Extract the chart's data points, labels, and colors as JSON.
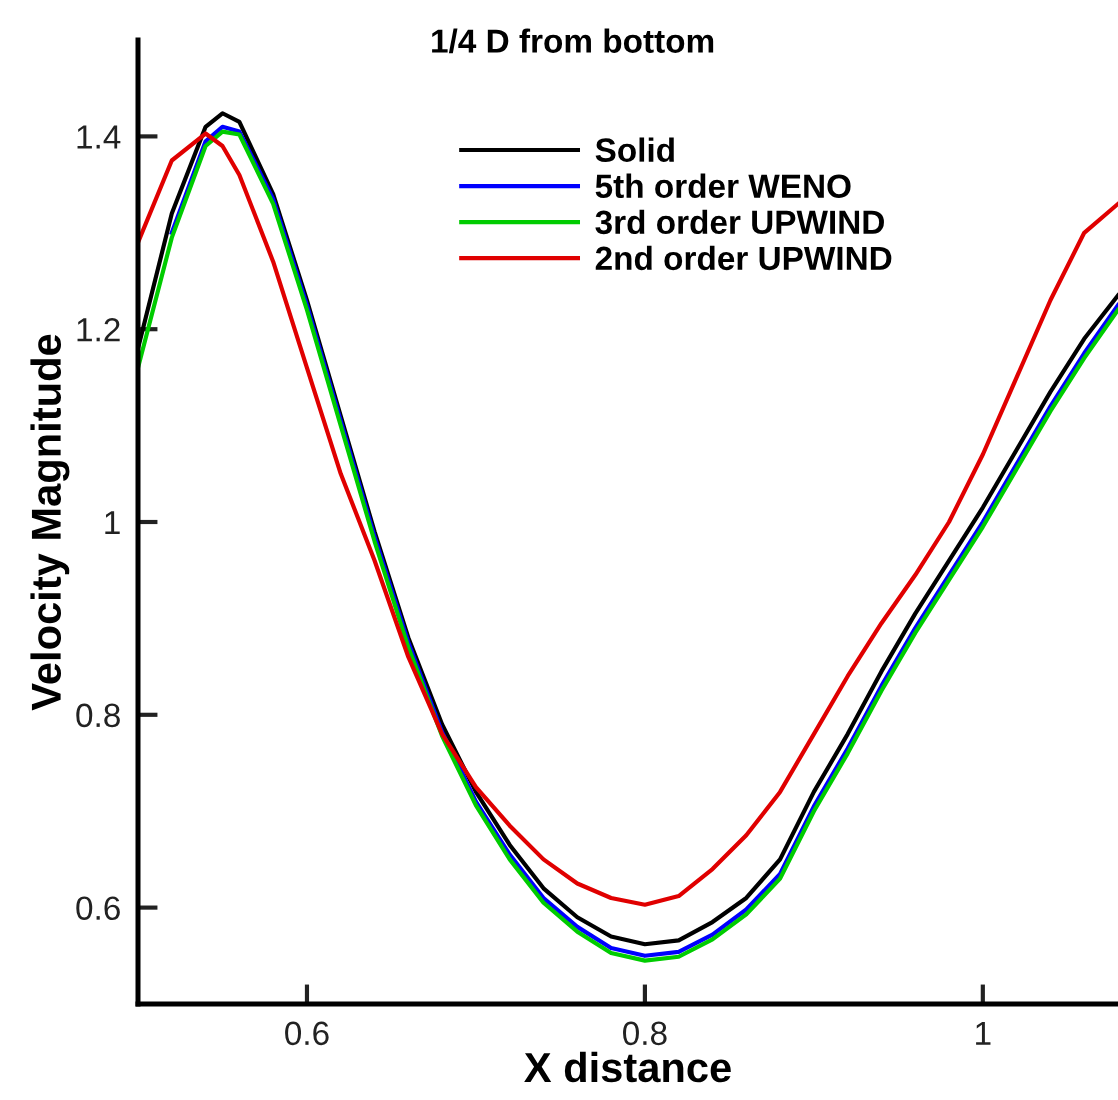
{
  "chart_data": {
    "type": "line",
    "title": "1/4 D from bottom",
    "xlabel": "X distance",
    "ylabel": "Velocity Magnitude",
    "x": [
      0.5,
      0.52,
      0.54,
      0.55,
      0.56,
      0.58,
      0.6,
      0.62,
      0.64,
      0.66,
      0.68,
      0.7,
      0.72,
      0.74,
      0.76,
      0.78,
      0.8,
      0.82,
      0.84,
      0.86,
      0.88,
      0.9,
      0.92,
      0.94,
      0.96,
      0.98,
      1.0,
      1.02,
      1.04,
      1.06,
      1.08
    ],
    "series": [
      {
        "name": "Solid",
        "color": "#000000",
        "values": [
          1.18,
          1.32,
          1.41,
          1.424,
          1.415,
          1.34,
          1.23,
          1.11,
          0.99,
          0.88,
          0.79,
          0.72,
          0.665,
          0.62,
          0.59,
          0.57,
          0.562,
          0.566,
          0.585,
          0.61,
          0.65,
          0.72,
          0.78,
          0.845,
          0.905,
          0.96,
          1.015,
          1.075,
          1.135,
          1.19,
          1.235
        ]
      },
      {
        "name": "5th order WENO",
        "color": "#0000ff",
        "values": [
          null,
          1.3,
          1.395,
          1.41,
          1.405,
          1.335,
          1.225,
          1.105,
          0.985,
          0.875,
          0.782,
          0.71,
          0.655,
          0.61,
          0.58,
          0.558,
          0.55,
          0.554,
          0.572,
          0.598,
          0.635,
          0.705,
          0.765,
          0.83,
          0.89,
          0.945,
          1.0,
          1.06,
          1.12,
          1.175,
          1.225
        ]
      },
      {
        "name": "3rd order UPWIND",
        "color": "#00cc00",
        "values": [
          1.16,
          1.295,
          1.39,
          1.405,
          1.402,
          1.33,
          1.22,
          1.1,
          0.98,
          0.87,
          0.778,
          0.706,
          0.65,
          0.605,
          0.575,
          0.553,
          0.545,
          0.549,
          0.567,
          0.593,
          0.63,
          0.7,
          0.76,
          0.825,
          0.885,
          0.94,
          0.995,
          1.055,
          1.115,
          1.17,
          1.22
        ]
      },
      {
        "name": "2nd order UPWIND",
        "color": "#e00000",
        "values": [
          1.29,
          1.375,
          1.403,
          1.39,
          1.36,
          1.27,
          1.16,
          1.05,
          0.96,
          0.86,
          0.78,
          0.725,
          0.685,
          0.65,
          0.625,
          0.61,
          0.603,
          0.612,
          0.64,
          0.675,
          0.72,
          0.78,
          0.84,
          0.895,
          0.945,
          1.0,
          1.07,
          1.15,
          1.23,
          1.3,
          1.33
        ]
      }
    ],
    "xlim": [
      0.5,
      1.08
    ],
    "ylim": [
      0.5,
      1.5
    ],
    "xticks": [
      0.6,
      0.8,
      1
    ],
    "yticks": [
      0.6,
      0.8,
      1,
      1.2,
      1.4
    ],
    "grid": false,
    "legend": "top",
    "marker": "none",
    "line_style": "solid"
  }
}
